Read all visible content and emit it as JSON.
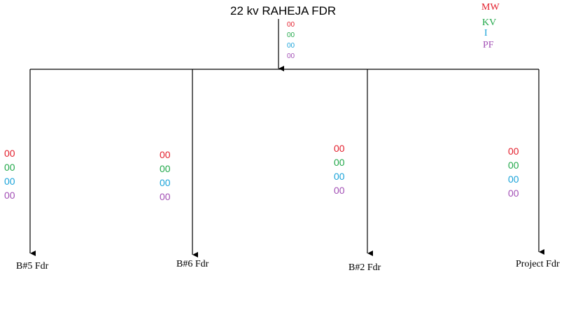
{
  "title": "22 kv RAHEJA FDR",
  "colors": {
    "mw": "#e3202d",
    "kv": "#22a84a",
    "i": "#1aa3d9",
    "pf": "#a24fb5"
  },
  "legend": {
    "mw": "MW",
    "kv": "KV",
    "i": "I",
    "pf": "PF"
  },
  "incomer": {
    "mw": "00",
    "kv": "00",
    "i": "00",
    "pf": "00"
  },
  "feeders": [
    {
      "name": "B#5 Fdr",
      "mw": "00",
      "kv": "00",
      "i": "00",
      "pf": "00"
    },
    {
      "name": "B#6 Fdr",
      "mw": "00",
      "kv": "00",
      "i": "00",
      "pf": "00"
    },
    {
      "name": "B#2 Fdr",
      "mw": "00",
      "kv": "00",
      "i": "00",
      "pf": "00"
    },
    {
      "name": "Project Fdr",
      "mw": "00",
      "kv": "00",
      "i": "00",
      "pf": "00"
    }
  ]
}
